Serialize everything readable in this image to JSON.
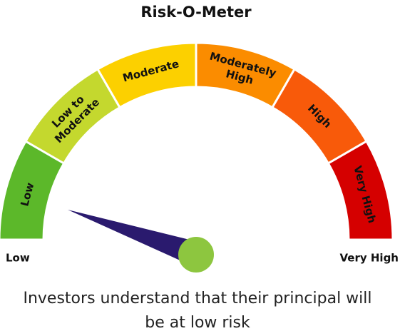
{
  "header": {
    "title": "Risk-O-Meter"
  },
  "segments": [
    {
      "lines": [
        "Low"
      ],
      "color": "#5cb82a"
    },
    {
      "lines": [
        "Low to",
        "Moderate"
      ],
      "color": "#c4d82e"
    },
    {
      "lines": [
        "Moderate"
      ],
      "color": "#fcd000"
    },
    {
      "lines": [
        "Moderately",
        "High"
      ],
      "color": "#fb8c00"
    },
    {
      "lines": [
        "High"
      ],
      "color": "#f85a0a"
    },
    {
      "lines": [
        "Very High"
      ],
      "color": "#d50000"
    }
  ],
  "end_labels": {
    "low": "Low",
    "high": "Very High"
  },
  "caption": [
    "Investors understand that their principal will",
    "be at low risk"
  ]
}
